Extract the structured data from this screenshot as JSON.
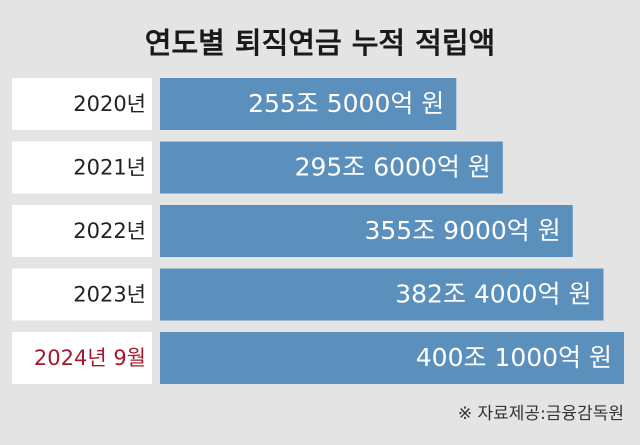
{
  "chart_data": {
    "type": "barh",
    "title": "연도별 퇴직연금 누적 적립액",
    "categories": [
      "2020년",
      "2021년",
      "2022년",
      "2023년",
      "2024년 9월"
    ],
    "values": [
      255.5,
      295.6,
      355.9,
      382.4,
      400.1
    ],
    "value_labels": [
      "255조 5000억 원",
      "295조 6000억 원",
      "355조 9000억 원",
      "382조 4000억 원",
      "400조 1000억 원"
    ],
    "color": "#5b8fbc",
    "label_colors": [
      "#222222",
      "#222222",
      "#222222",
      "#222222",
      "#a3182b"
    ],
    "source": "※ 자료제공:금융감독원"
  }
}
